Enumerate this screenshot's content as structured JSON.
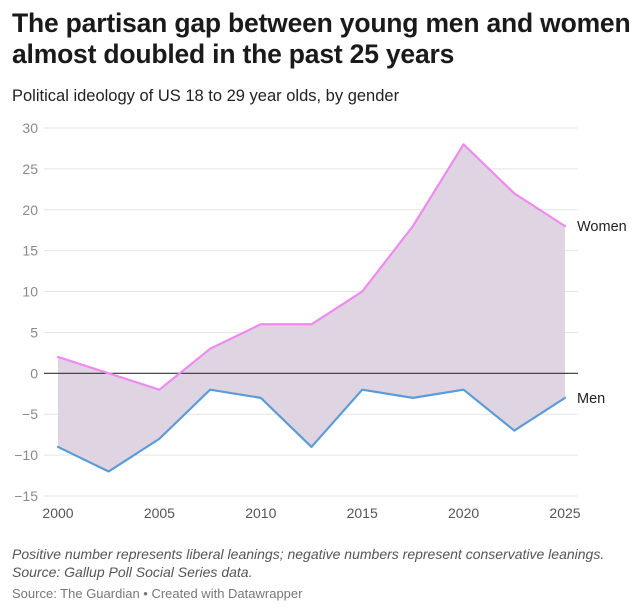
{
  "title": "The partisan gap between young men and women almost doubled in the past 25 years",
  "subtitle": "Political ideology of US 18 to 29 year olds, by gender",
  "notes": [
    "Positive number represents liberal leanings; negative numbers represent conservative leanings.",
    "Source: Gallup Poll Social Series data."
  ],
  "footer": "Source: The Guardian • Created with Datawrapper",
  "colors": {
    "women": "#ef8af0",
    "men": "#5b9bd8",
    "fill": "#ddd3e0",
    "grid": "#e4e4e4",
    "zero": "#333333"
  },
  "chart_data": {
    "type": "area",
    "title": "The partisan gap between young men and women almost doubled in the past 25 years",
    "subtitle": "Political ideology of US 18 to 29 year olds, by gender",
    "xlabel": "",
    "ylabel": "",
    "x": [
      2000,
      2002.5,
      2005,
      2007.5,
      2010,
      2012.5,
      2015,
      2017.5,
      2020,
      2022.5,
      2025
    ],
    "xlim": [
      2000,
      2025
    ],
    "ylim": [
      -15,
      30
    ],
    "xticks": [
      "2000",
      "2005",
      "2010",
      "2015",
      "2020",
      "2025"
    ],
    "yticks": [
      "30",
      "25",
      "20",
      "15",
      "10",
      "5",
      "0",
      "−5",
      "−10",
      "−15"
    ],
    "grid": true,
    "series": [
      {
        "name": "Women",
        "values": [
          2,
          0,
          -2,
          3,
          6,
          6,
          10,
          18,
          28,
          22,
          18
        ]
      },
      {
        "name": "Men",
        "values": [
          -9,
          -12,
          -8,
          -2,
          -3,
          -9,
          -2,
          -3,
          -2,
          -7,
          -3
        ]
      }
    ],
    "fill_between": [
      "Women",
      "Men"
    ],
    "legend": "direct labels at right end of lines"
  }
}
